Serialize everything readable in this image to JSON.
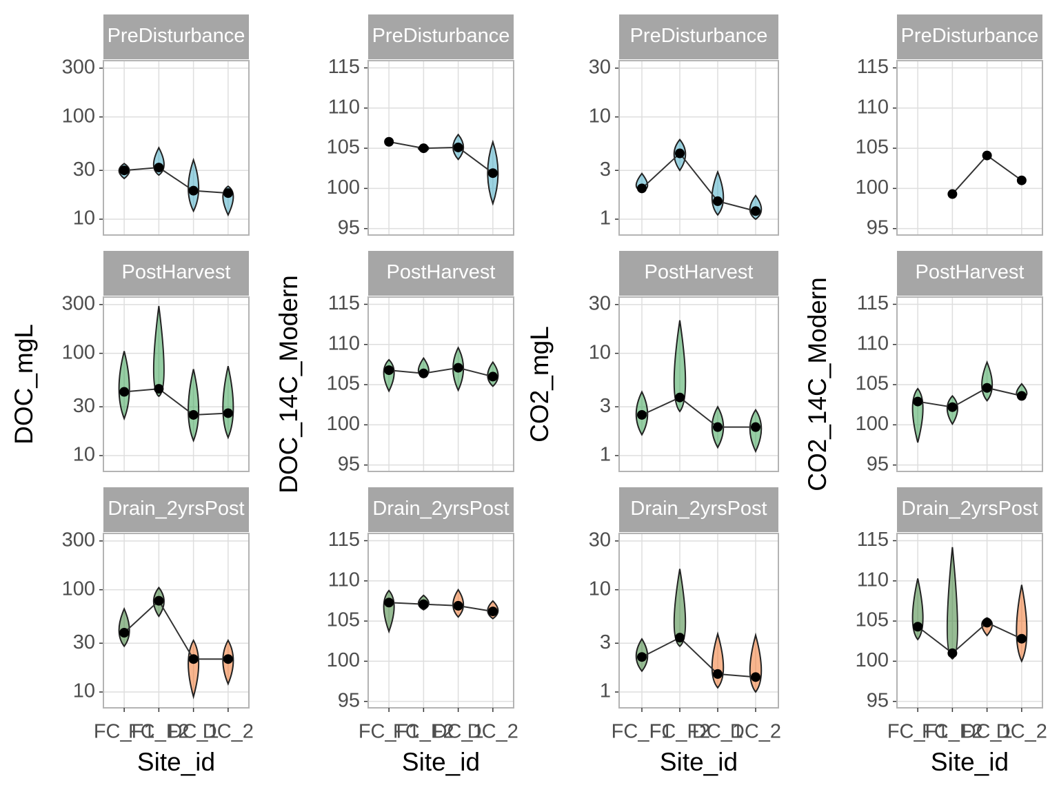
{
  "chart_data": [
    {
      "type": "violin",
      "strip": "PreDisturbance",
      "log_scale": true,
      "ylim": [
        7,
        355
      ],
      "yticks": [
        10,
        30,
        100,
        300
      ],
      "colors": [
        "#3aa8c4",
        "#3aa8c4",
        "#3aa8c4",
        "#3aa8c4"
      ],
      "means": [
        30,
        32,
        19,
        18
      ],
      "ranges": [
        [
          25,
          35
        ],
        [
          27,
          50
        ],
        [
          12,
          38
        ],
        [
          11,
          21
        ]
      ]
    },
    {
      "type": "violin",
      "strip": "PreDisturbance",
      "log_scale": false,
      "ylim": [
        94.2,
        115.9
      ],
      "yticks": [
        95,
        100,
        105,
        110,
        115
      ],
      "colors": [
        "#3aa8c4",
        "#3aa8c4",
        "#3aa8c4",
        "#3aa8c4"
      ],
      "means": [
        105.8,
        105.0,
        105.1,
        101.9
      ],
      "ranges": [
        null,
        [
          104.6,
          105.4
        ],
        [
          103.6,
          106.7
        ],
        [
          98.1,
          105.8
        ]
      ]
    },
    {
      "type": "violin",
      "strip": "PreDisturbance",
      "log_scale": true,
      "ylim": [
        0.7,
        35.5
      ],
      "yticks": [
        1,
        3,
        10,
        30
      ],
      "colors": [
        "#3aa8c4",
        "#3aa8c4",
        "#3aa8c4",
        "#3aa8c4"
      ],
      "means": [
        2.0,
        4.4,
        1.5,
        1.2
      ],
      "ranges": [
        [
          1.9,
          2.8
        ],
        [
          3,
          6
        ],
        [
          1.1,
          2.9
        ],
        [
          1.0,
          1.7
        ]
      ]
    },
    {
      "type": "violin",
      "strip": "PreDisturbance",
      "log_scale": false,
      "ylim": [
        94.2,
        115.9
      ],
      "yticks": [
        95,
        100,
        105,
        110,
        115
      ],
      "colors": [
        "#3aa8c4",
        "#3aa8c4",
        "#3aa8c4",
        "#3aa8c4"
      ],
      "means": [
        null,
        99.3,
        104.1,
        101.0
      ],
      "ranges": [
        null,
        null,
        null,
        null
      ]
    },
    {
      "type": "violin",
      "strip": "PostHarvest",
      "ylabel": "DOC_mgL",
      "log_scale": true,
      "ylim": [
        7,
        355
      ],
      "yticks": [
        10,
        30,
        100,
        300
      ],
      "colors": [
        "#2e9e4a",
        "#2e9e4a",
        "#2e9e4a",
        "#2e9e4a"
      ],
      "means": [
        42,
        45,
        25,
        26
      ],
      "ranges": [
        [
          23,
          105
        ],
        [
          38,
          290
        ],
        [
          14,
          70
        ],
        [
          15,
          75
        ]
      ]
    },
    {
      "type": "violin",
      "strip": "PostHarvest",
      "ylabel": "DOC_14C_Modern",
      "log_scale": false,
      "ylim": [
        94.2,
        115.9
      ],
      "yticks": [
        95,
        100,
        105,
        110,
        115
      ],
      "colors": [
        "#2e9e4a",
        "#2e9e4a",
        "#2e9e4a",
        "#2e9e4a"
      ],
      "means": [
        106.8,
        106.4,
        107.1,
        106.0
      ],
      "ranges": [
        [
          104.2,
          108.1
        ],
        [
          105.9,
          108.3
        ],
        [
          104.3,
          109.6
        ],
        [
          104.8,
          107.8
        ]
      ]
    },
    {
      "type": "violin",
      "strip": "PostHarvest",
      "ylabel": "CO2_mgL",
      "log_scale": true,
      "ylim": [
        0.7,
        35.5
      ],
      "yticks": [
        1,
        3,
        10,
        30
      ],
      "colors": [
        "#2e9e4a",
        "#2e9e4a",
        "#2e9e4a",
        "#2e9e4a"
      ],
      "means": [
        2.5,
        3.7,
        1.9,
        1.9
      ],
      "ranges": [
        [
          1.6,
          4.2
        ],
        [
          2.7,
          21
        ],
        [
          1.2,
          3.0
        ],
        [
          1.1,
          2.8
        ]
      ]
    },
    {
      "type": "violin",
      "strip": "PostHarvest",
      "ylabel": "CO2_14C_Modern",
      "log_scale": false,
      "ylim": [
        94.2,
        115.9
      ],
      "yticks": [
        95,
        100,
        105,
        110,
        115
      ],
      "colors": [
        "#2e9e4a",
        "#2e9e4a",
        "#2e9e4a",
        "#2e9e4a"
      ],
      "means": [
        102.9,
        102.2,
        104.6,
        103.6
      ],
      "ranges": [
        [
          97.8,
          104.5
        ],
        [
          100.1,
          103.6
        ],
        [
          103.0,
          107.8
        ],
        [
          103.4,
          105.1
        ]
      ]
    },
    {
      "type": "violin",
      "strip": "Drain_2yrsPost",
      "xlabel": "Site_id",
      "categories": [
        "FC_F1",
        "FC_F2",
        "DC_1",
        "DC_2"
      ],
      "log_scale": true,
      "ylim": [
        7,
        355
      ],
      "yticks": [
        10,
        30,
        100,
        300
      ],
      "colors": [
        "#2f7a2a",
        "#2f7a2a",
        "#f26c1e",
        "#f26c1e"
      ],
      "means": [
        38,
        78,
        21,
        21
      ],
      "ranges": [
        [
          28,
          65
        ],
        [
          55,
          105
        ],
        [
          9,
          32
        ],
        [
          12,
          32
        ]
      ]
    },
    {
      "type": "violin",
      "strip": "Drain_2yrsPost",
      "xlabel": "Site_id",
      "categories": [
        "FC_F1",
        "FC_F2",
        "DC_1",
        "DC_2"
      ],
      "log_scale": false,
      "ylim": [
        94.2,
        115.9
      ],
      "yticks": [
        95,
        100,
        105,
        110,
        115
      ],
      "colors": [
        "#2f7a2a",
        "#2f7a2a",
        "#f26c1e",
        "#f26c1e"
      ],
      "means": [
        107.3,
        107.1,
        106.9,
        106.2
      ],
      "ranges": [
        [
          103.7,
          108.8
        ],
        [
          106.4,
          108.2
        ],
        [
          105.5,
          108.9
        ],
        [
          105.3,
          107.5
        ]
      ]
    },
    {
      "type": "violin",
      "strip": "Drain_2yrsPost",
      "xlabel": "Site_id",
      "categories": [
        "FC_F1",
        "FC_F2",
        "DC_1",
        "DC_2"
      ],
      "log_scale": true,
      "ylim": [
        0.7,
        35.5
      ],
      "yticks": [
        1,
        3,
        10,
        30
      ],
      "colors": [
        "#2f7a2a",
        "#2f7a2a",
        "#f26c1e",
        "#f26c1e"
      ],
      "means": [
        2.2,
        3.4,
        1.5,
        1.4
      ],
      "ranges": [
        [
          1.6,
          3.3
        ],
        [
          2.8,
          16
        ],
        [
          1.1,
          3.7
        ],
        [
          1.0,
          3.6
        ]
      ]
    },
    {
      "type": "violin",
      "strip": "Drain_2yrsPost",
      "xlabel": "Site_id",
      "categories": [
        "FC_F1",
        "FC_F2",
        "DC_1",
        "DC_2"
      ],
      "log_scale": false,
      "ylim": [
        94.2,
        115.9
      ],
      "yticks": [
        95,
        100,
        105,
        110,
        115
      ],
      "colors": [
        "#2f7a2a",
        "#2f7a2a",
        "#f26c1e",
        "#f26c1e"
      ],
      "means": [
        104.3,
        101.0,
        104.8,
        102.8
      ],
      "ranges": [
        [
          102.7,
          110.3
        ],
        [
          100.3,
          114.2
        ],
        [
          103.2,
          105.4
        ],
        [
          100.0,
          109.5
        ]
      ]
    }
  ]
}
